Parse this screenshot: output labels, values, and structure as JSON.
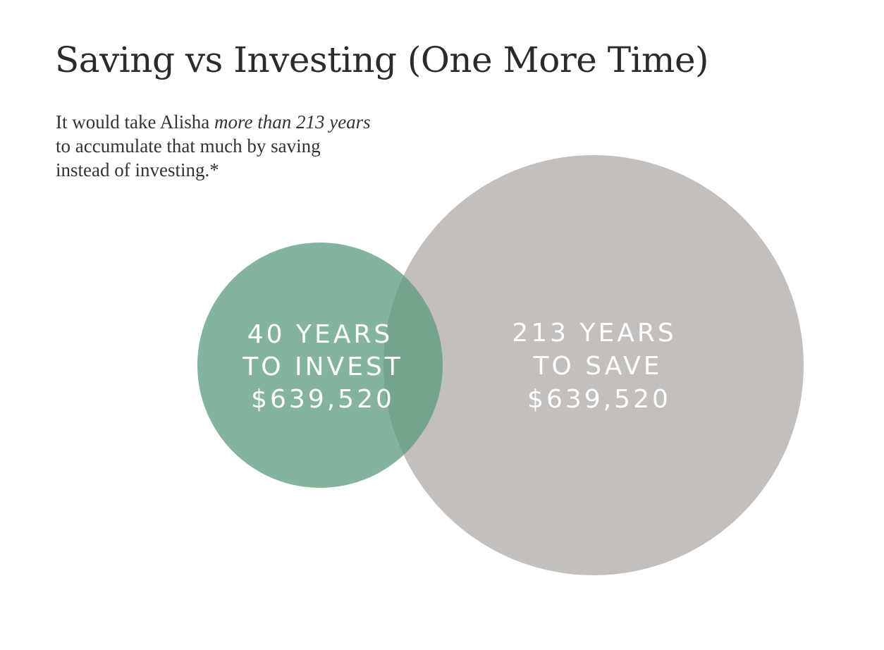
{
  "header": {
    "title": "Saving vs Investing (One More Time)",
    "subtitle": [
      "It would take Alisha ",
      "more than 213 years",
      " to accumulate that much by saving instead of investing.*"
    ]
  },
  "circles": [
    {
      "lines": [
        "40 YEARS",
        "TO INVEST",
        "$639,520"
      ]
    },
    {
      "lines": [
        "213 YEARS",
        "TO SAVE",
        "$639,520"
      ]
    }
  ]
}
